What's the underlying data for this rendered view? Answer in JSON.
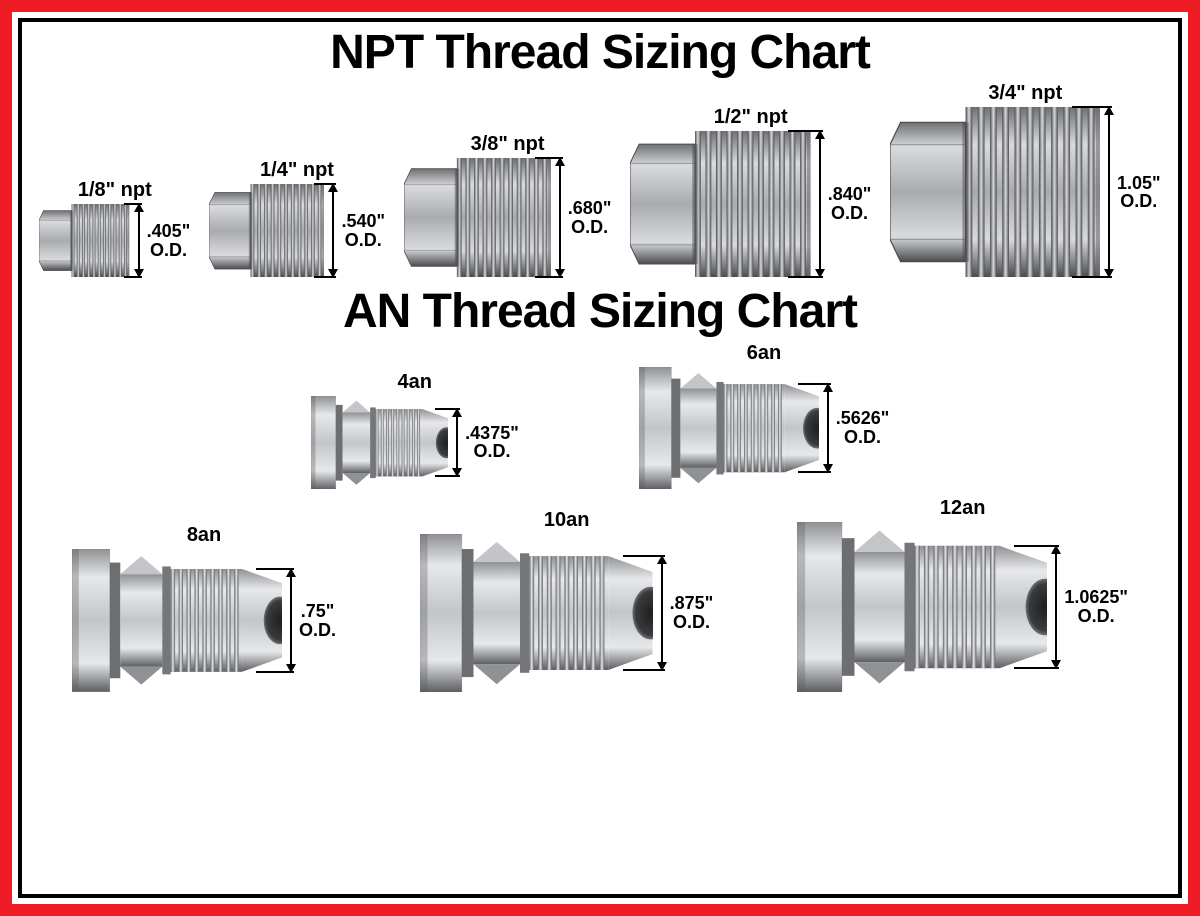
{
  "border_outer_color": "#ee1c25",
  "border_inner_color": "#000000",
  "background_color": "#ffffff",
  "text_color": "#000000",
  "title_fontsize": 48,
  "label_fontsize": 20,
  "dim_fontsize": 18,
  "font_family": "Arial Black",
  "npt": {
    "title": "NPT Thread Sizing Chart",
    "metal_colors": {
      "light": "#d9dadd",
      "mid": "#a9abae",
      "dark": "#6e7073",
      "deep": "#4a4b4e"
    },
    "items": [
      {
        "size_label": "1/8\" npt",
        "od_value": ".405\"",
        "od_unit": "O.D.",
        "scale": 0.43
      },
      {
        "size_label": "1/4\" npt",
        "od_value": ".540\"",
        "od_unit": "O.D.",
        "scale": 0.55
      },
      {
        "size_label": "3/8\" npt",
        "od_value": ".680\"",
        "od_unit": "O.D.",
        "scale": 0.7
      },
      {
        "size_label": "1/2\" npt",
        "od_value": ".840\"",
        "od_unit": "O.D.",
        "scale": 0.86
      },
      {
        "size_label": "3/4\" npt",
        "od_value": "1.05\"",
        "od_unit": "O.D.",
        "scale": 1.0
      }
    ]
  },
  "an": {
    "title": "AN Thread Sizing Chart",
    "metal_colors": {
      "light": "#e7e8ea",
      "mid": "#c3c5c8",
      "dark": "#8f9194",
      "deep": "#5c5e61"
    },
    "rows": [
      [
        {
          "size_label": "4an",
          "od_value": ".4375\"",
          "od_unit": "O.D.",
          "scale": 0.55
        },
        {
          "size_label": "6an",
          "od_value": ".5626\"",
          "od_unit": "O.D.",
          "scale": 0.72
        }
      ],
      [
        {
          "size_label": "8an",
          "od_value": ".75\"",
          "od_unit": "O.D.",
          "scale": 0.84
        },
        {
          "size_label": "10an",
          "od_value": ".875\"",
          "od_unit": "O.D.",
          "scale": 0.93
        },
        {
          "size_label": "12an",
          "od_value": "1.0625\"",
          "od_unit": "O.D.",
          "scale": 1.0
        }
      ]
    ]
  }
}
